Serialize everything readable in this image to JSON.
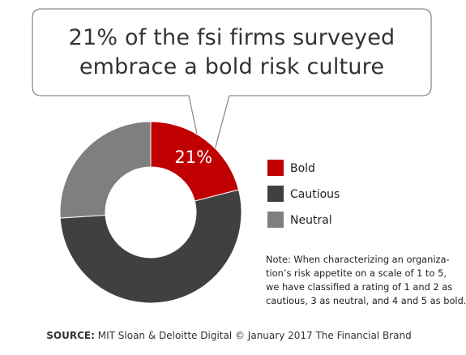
{
  "callout": {
    "lines": [
      "21% of the fsi firms surveyed",
      "embrace a bold risk culture"
    ]
  },
  "chart_data": {
    "type": "pie",
    "donut": true,
    "slice_labels_shown": [
      "21%",
      "",
      ""
    ],
    "series": [
      {
        "name": "Bold",
        "value": 21,
        "color": "#c00000"
      },
      {
        "name": "Cautious",
        "value": 53,
        "color": "#404040"
      },
      {
        "name": "Neutral",
        "value": 26,
        "color": "#7f7f7f"
      }
    ],
    "legend_position": "right",
    "title": "",
    "xlabel": "",
    "ylabel": ""
  },
  "legend": {
    "items": [
      {
        "label": "Bold",
        "color": "#c00000"
      },
      {
        "label": "Cautious",
        "color": "#404040"
      },
      {
        "label": "Neutral",
        "color": "#7f7f7f"
      }
    ]
  },
  "note": {
    "lines": [
      "Note: When characterizing an organiza-",
      "tion’s risk appetite on a scale of 1 to 5,",
      "we have classified a rating of 1 and 2 as",
      "cautious, 3 as neutral, and 4 and 5 as bold."
    ]
  },
  "source": {
    "label": "SOURCE:",
    "text": " MIT Sloan & Deloitte Digital  © January 2017 The Financial Brand"
  }
}
